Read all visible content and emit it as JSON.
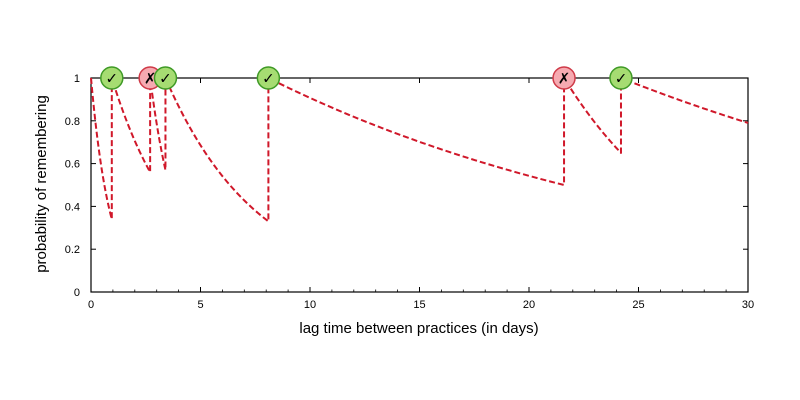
{
  "chart_data": {
    "type": "line",
    "title": "",
    "xlabel": "lag time between practices (in days)",
    "ylabel": "probability of remembering",
    "xlim": [
      0,
      30
    ],
    "ylim": [
      0,
      1
    ],
    "x_ticks": [
      0,
      5,
      10,
      15,
      20,
      25,
      30
    ],
    "y_ticks": [
      0,
      0.2,
      0.4,
      0.6,
      0.8,
      1
    ],
    "grid": false,
    "legend": "none",
    "line_color": "#d0182a",
    "line_style": "dashed",
    "segments": [
      {
        "start": 0.0,
        "end": 0.95,
        "start_y": 1.0,
        "end_y": 0.34
      },
      {
        "start": 0.95,
        "end": 2.7,
        "start_y": 1.0,
        "end_y": 0.56
      },
      {
        "start": 2.7,
        "end": 3.4,
        "start_y": 1.0,
        "end_y": 0.57
      },
      {
        "start": 3.4,
        "end": 8.1,
        "start_y": 1.0,
        "end_y": 0.33
      },
      {
        "start": 8.1,
        "end": 21.6,
        "start_y": 1.0,
        "end_y": 0.5
      },
      {
        "start": 21.6,
        "end": 24.2,
        "start_y": 1.0,
        "end_y": 0.65
      },
      {
        "start": 24.2,
        "end": 30.0,
        "start_y": 1.0,
        "end_y": 0.79
      }
    ],
    "practices": [
      {
        "x": 0.95,
        "result": "correct",
        "symbol": "✓"
      },
      {
        "x": 2.7,
        "result": "incorrect",
        "symbol": "✗"
      },
      {
        "x": 3.4,
        "result": "correct",
        "symbol": "✓"
      },
      {
        "x": 8.1,
        "result": "correct",
        "symbol": "✓"
      },
      {
        "x": 21.6,
        "result": "incorrect",
        "symbol": "✗"
      },
      {
        "x": 24.2,
        "result": "correct",
        "symbol": "✓"
      }
    ],
    "marker_colors": {
      "correct_fill": "#a6dc72",
      "correct_stroke": "#3f9a26",
      "incorrect_fill": "#f6aab1",
      "incorrect_stroke": "#cf3a48"
    }
  }
}
